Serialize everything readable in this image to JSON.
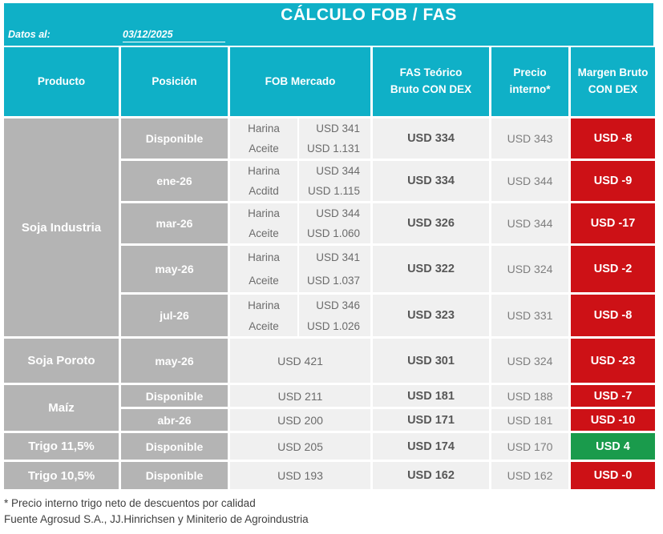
{
  "title": "CÁLCULO FOB / FAS",
  "meta": {
    "label": "Datos al:",
    "date": "03/12/2025"
  },
  "columns": {
    "producto": "Producto",
    "posicion": "Posición",
    "fob": "FOB Mercado",
    "fas": "FAS Teórico\nBruto CON DEX",
    "precio": "Precio\ninterno*",
    "margen": "Margen Bruto\nCON DEX"
  },
  "colors": {
    "accent": "#0fb0c7",
    "row_gray": "#b4b4b4",
    "cell_bg": "#f0f0f0",
    "negative_red": "#cd1116",
    "positive_green": "#1a9b4c"
  },
  "soja_industria": {
    "producto": "Soja Industria",
    "rows": [
      {
        "posicion": "Disponible",
        "fob_rows": [
          {
            "label": "Harina",
            "value": "USD 341"
          },
          {
            "label": "Aceite",
            "value": "USD 1.131"
          }
        ],
        "fas": "USD 334",
        "precio": "USD 343",
        "margen": "USD -8",
        "tone": "red"
      },
      {
        "posicion": "ene-26",
        "fob_rows": [
          {
            "label": "Harina",
            "value": "USD 344"
          },
          {
            "label": "Acditd",
            "value": "USD 1.115"
          }
        ],
        "fas": "USD 334",
        "precio": "USD 344",
        "margen": "USD -9",
        "tone": "red"
      },
      {
        "posicion": "mar-26",
        "fob_rows": [
          {
            "label": "Harina",
            "value": "USD 344"
          },
          {
            "label": "Aceite",
            "value": "USD 1.060"
          }
        ],
        "fas": "USD 326",
        "precio": "USD 344",
        "margen": "USD -17",
        "tone": "red"
      },
      {
        "posicion": "may-26",
        "fob_rows": [
          {
            "label": "Harina",
            "value": "USD 341"
          },
          {
            "label": "Aceite",
            "value": "USD 1.037"
          }
        ],
        "fas": "USD 322",
        "precio": "USD 324",
        "margen": "USD -2",
        "tone": "red"
      },
      {
        "posicion": "jul-26",
        "fob_rows": [
          {
            "label": "Harina",
            "value": "USD 346"
          },
          {
            "label": "Aceite",
            "value": "USD 1.026"
          }
        ],
        "fas": "USD 323",
        "precio": "USD 331",
        "margen": "USD -8",
        "tone": "red"
      }
    ]
  },
  "soja_poroto": {
    "producto": "Soja Poroto",
    "posicion": "may-26",
    "fob": "USD 421",
    "fas": "USD 301",
    "precio": "USD 324",
    "margen": "USD -23",
    "tone": "red"
  },
  "maiz": {
    "producto": "Maíz",
    "rows": [
      {
        "posicion": "Disponible",
        "fob": "USD 211",
        "fas": "USD 181",
        "precio": "USD 188",
        "margen": "USD -7",
        "tone": "red"
      },
      {
        "posicion": "abr-26",
        "fob": "USD 200",
        "fas": "USD 171",
        "precio": "USD 181",
        "margen": "USD -10",
        "tone": "red"
      }
    ]
  },
  "trigo_115": {
    "producto": "Trigo 11,5%",
    "posicion": "Disponible",
    "fob": "USD 205",
    "fas": "USD 174",
    "precio": "USD 170",
    "margen": "USD 4",
    "tone": "green"
  },
  "trigo_105": {
    "producto": "Trigo 10,5%",
    "posicion": "Disponible",
    "fob": "USD 193",
    "fas": "USD 162",
    "precio": "USD 162",
    "margen": "USD -0",
    "tone": "red"
  },
  "footnotes": [
    "* Precio interno trigo neto de descuentos por calidad",
    "Fuente Agrosud S.A., JJ.Hinrichsen y Miniterio de Agroindustria"
  ]
}
